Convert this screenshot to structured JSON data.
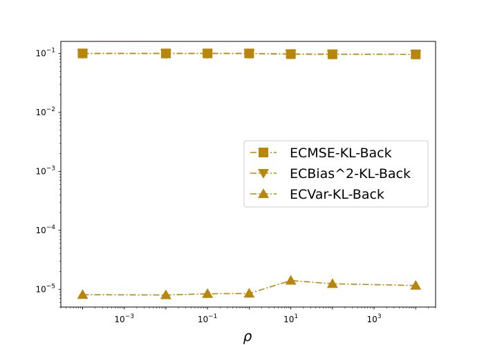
{
  "chart_data": {
    "type": "line",
    "title": "",
    "xlabel": "ρ",
    "ylabel": "",
    "xscale": "log",
    "yscale": "log",
    "xlim": [
      3e-05,
      30000
    ],
    "ylim": [
      5e-06,
      0.16
    ],
    "x": [
      0.0001,
      0.01,
      0.1,
      1,
      10,
      100,
      10000
    ],
    "x_ticks": [
      {
        "base": "10",
        "exp": "−3",
        "value": 0.001
      },
      {
        "base": "10",
        "exp": "−1",
        "value": 0.1
      },
      {
        "base": "10",
        "exp": "1",
        "value": 10
      },
      {
        "base": "10",
        "exp": "3",
        "value": 1000
      }
    ],
    "y_ticks": [
      {
        "base": "10",
        "exp": "−1",
        "value": 0.1
      },
      {
        "base": "10",
        "exp": "−2",
        "value": 0.01
      },
      {
        "base": "10",
        "exp": "−3",
        "value": 0.001
      },
      {
        "base": "10",
        "exp": "−4",
        "value": 0.0001
      },
      {
        "base": "10",
        "exp": "−5",
        "value": 1e-05
      }
    ],
    "series": [
      {
        "name": "ECMSE-KL-Back",
        "marker": "square",
        "color": "#b8860b",
        "values": [
          0.1001,
          0.1,
          0.1001,
          0.1,
          0.0975,
          0.0968,
          0.0965
        ]
      },
      {
        "name": "ECBias^2-KL-Back",
        "marker": "triangle-down",
        "color": "#b8860b",
        "values": [
          0.1,
          0.1,
          0.1,
          0.1,
          0.0975,
          0.0968,
          0.0965
        ]
      },
      {
        "name": "ECVar-KL-Back",
        "marker": "triangle-up",
        "color": "#b8860b",
        "values": [
          8.1e-06,
          8e-06,
          8.4e-06,
          8.5e-06,
          1.41e-05,
          1.24e-05,
          1.16e-05
        ]
      }
    ],
    "legend_position": "center-right",
    "grid": false
  }
}
